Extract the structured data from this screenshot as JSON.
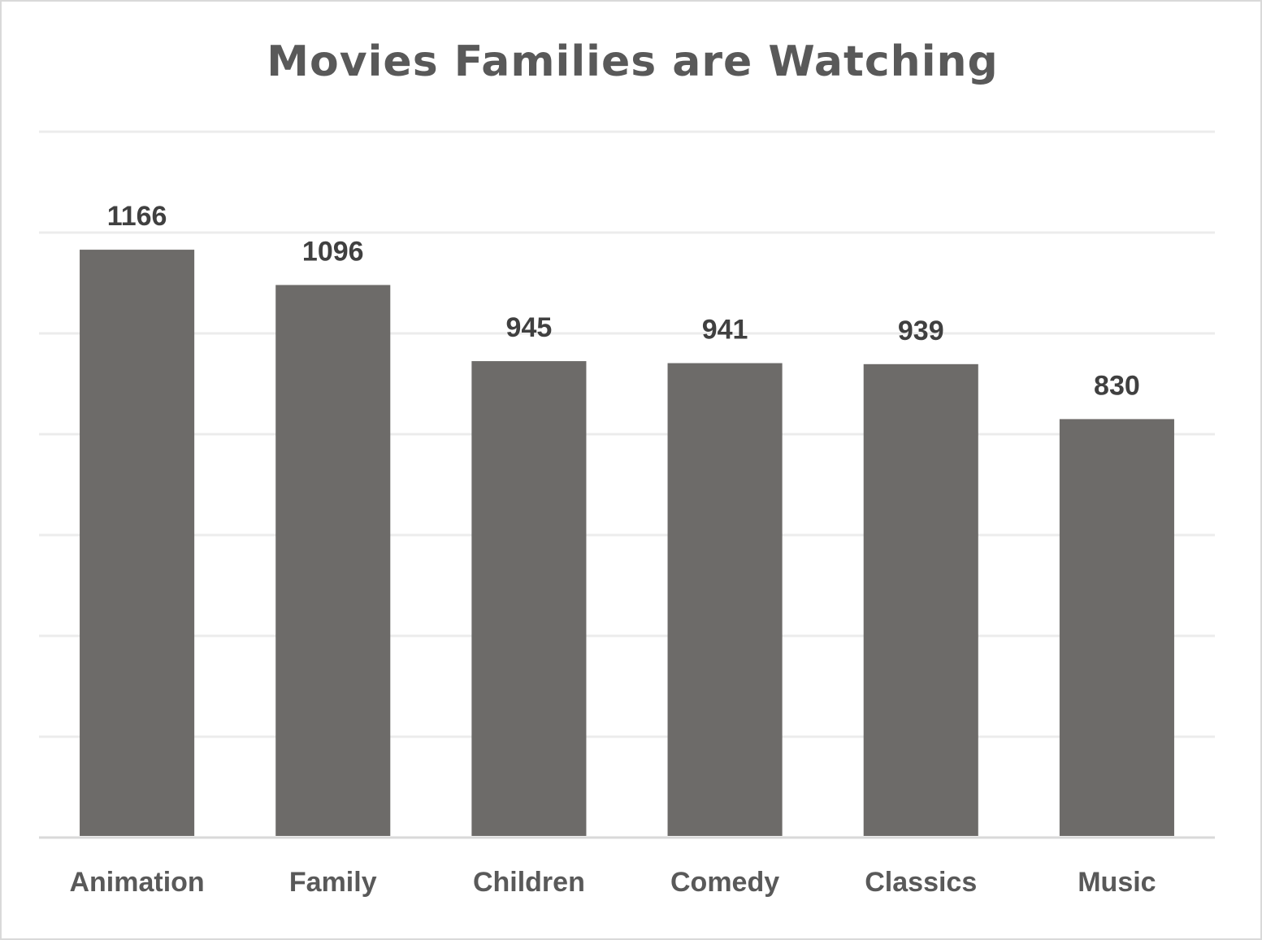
{
  "chart_data": {
    "type": "bar",
    "title": "Movies Families are Watching",
    "xlabel": "",
    "ylabel": "",
    "categories": [
      "Animation",
      "Family",
      "Children",
      "Comedy",
      "Classics",
      "Music"
    ],
    "values": [
      1166,
      1096,
      945,
      941,
      939,
      830
    ],
    "ylim": [
      0,
      1400
    ],
    "y_gridline_step": 200,
    "grid": true,
    "legend": "none",
    "data_labels": true,
    "colors": {
      "bar": "#6d6b69",
      "gridline": "#ececec",
      "axis": "#d9d9d9"
    }
  }
}
